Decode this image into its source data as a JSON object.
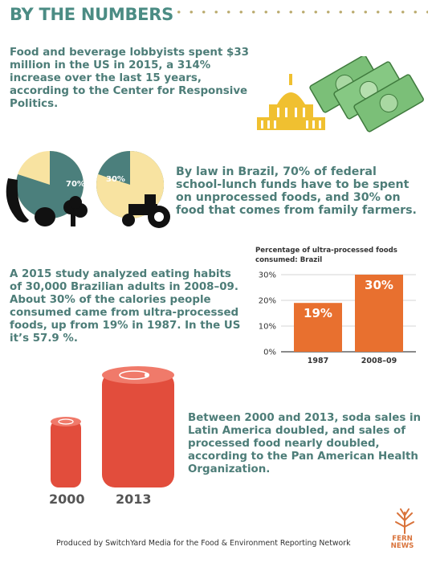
{
  "header": {
    "title": "BY THE NUMBERS"
  },
  "facts": {
    "lobbying": "Food and beverage lobbyists spent $33 million in the US in 2015, a 314% increase over the last 15 years, according to the Center for Responsive Politics.",
    "brazil_law": "By law in Brazil, 70% of federal school-lunch funds have to be spent on unprocessed foods, and 30% on food that comes from family farmers.",
    "study": "A 2015 study analyzed eating habits of 30,000 Brazilian adults in 2008–09. About 30% of the calories people consumed came from ultra-processed foods, up from 19% in 1987. In the US it’s 57.9 %.",
    "soda": "Between 2000 and 2013, soda sales in Latin America doubled, and sales of processed food nearly doubled, according to the Pan American Health Organization."
  },
  "pies": [
    {
      "label": "70%",
      "value": 70
    },
    {
      "label": "30%",
      "value": 30
    }
  ],
  "colors": {
    "teal": "#4b7f7c",
    "cream": "#f8e3a1",
    "orange": "#e8702f",
    "soda_red": "#e24d3c",
    "gold": "#f0c030"
  },
  "chart_data": {
    "type": "bar",
    "title": "Percentage of ultra-processed foods consumed: Brazil",
    "categories": [
      "1987",
      "2008–09"
    ],
    "values": [
      19,
      30
    ],
    "value_labels": [
      "19%",
      "30%"
    ],
    "yticks": [
      "0%",
      "10%",
      "20%",
      "30%"
    ],
    "ylim": [
      0,
      30
    ]
  },
  "soda_years": {
    "small": "2000",
    "large": "2013"
  },
  "footer": {
    "credit": "Produced by SwitchYard Media for the Food & Environment Reporting Network",
    "logo_line1": "FERN",
    "logo_line2": "NEWS"
  }
}
